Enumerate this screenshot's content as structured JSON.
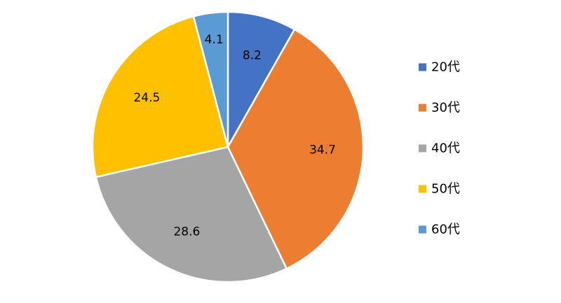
{
  "chart_data": {
    "type": "pie",
    "categories": [
      "20代",
      "30代",
      "40代",
      "50代",
      "60代"
    ],
    "values": [
      8.2,
      34.7,
      28.6,
      24.5,
      4.1
    ],
    "colors": [
      "#4472C4",
      "#ED7D31",
      "#A5A5A5",
      "#FFC000",
      "#5B9BD5"
    ],
    "data_labels": [
      "8.2",
      "34.7",
      "28.6",
      "24.5",
      "4.1"
    ],
    "start_angle": "12 o'clock",
    "direction": "clockwise",
    "legend": {
      "position": "right"
    }
  }
}
